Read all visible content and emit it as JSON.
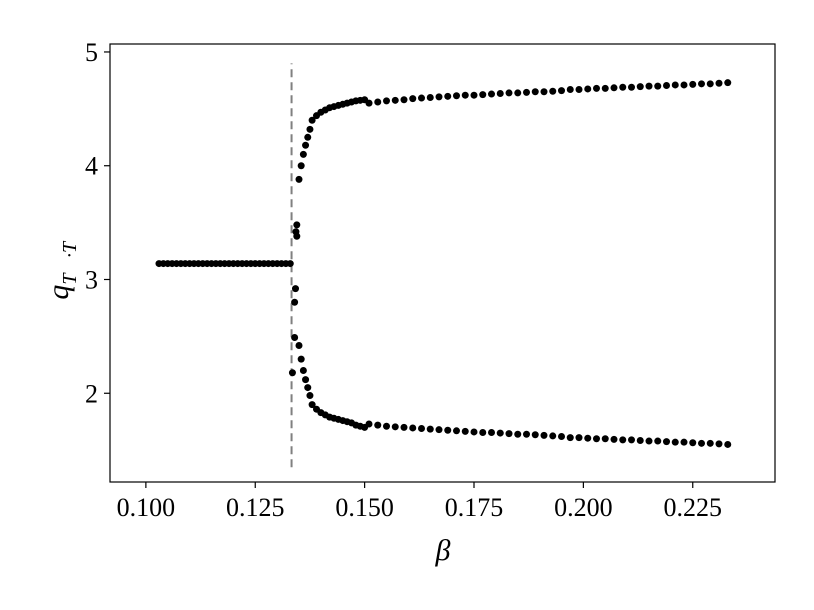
{
  "chart_data": {
    "type": "scatter",
    "xlabel": "β",
    "ylabel": "q",
    "ylabel_sub": "T⃗·T⃗",
    "xlim": [
      0.0918,
      0.2438
    ],
    "ylim": [
      1.22,
      5.07
    ],
    "xticks": [
      {
        "value": 0.1,
        "label": "0.100"
      },
      {
        "value": 0.125,
        "label": "0.125"
      },
      {
        "value": 0.15,
        "label": "0.150"
      },
      {
        "value": 0.175,
        "label": "0.175"
      },
      {
        "value": 0.2,
        "label": "0.200"
      },
      {
        "value": 0.225,
        "label": "0.225"
      }
    ],
    "yticks": [
      2,
      3,
      4,
      5
    ],
    "vline": {
      "x": 0.1333,
      "ymin": 1.35,
      "ymax": 4.9,
      "color": "#808080"
    },
    "series": [
      {
        "color": "#000000",
        "x": [
          0.103,
          0.104,
          0.105,
          0.106,
          0.107,
          0.108,
          0.109,
          0.11,
          0.111,
          0.112,
          0.113,
          0.114,
          0.115,
          0.116,
          0.117,
          0.118,
          0.119,
          0.12,
          0.121,
          0.122,
          0.123,
          0.124,
          0.125,
          0.126,
          0.127,
          0.128,
          0.129,
          0.13,
          0.131,
          0.132,
          0.133,
          0.1335,
          0.134,
          0.134,
          0.1342,
          0.1345,
          0.1345,
          0.1343
        ],
        "values": [
          3.14,
          3.14,
          3.14,
          3.14,
          3.14,
          3.14,
          3.14,
          3.14,
          3.14,
          3.14,
          3.14,
          3.14,
          3.14,
          3.14,
          3.14,
          3.14,
          3.14,
          3.14,
          3.14,
          3.14,
          3.14,
          3.14,
          3.14,
          3.14,
          3.14,
          3.14,
          3.14,
          3.14,
          3.14,
          3.14,
          3.14,
          2.18,
          2.49,
          2.8,
          2.92,
          3.38,
          3.48,
          3.42
        ]
      },
      {
        "color": "#000000",
        "x": [
          0.135,
          0.1355,
          0.136,
          0.1365,
          0.137,
          0.1375,
          0.138,
          0.139,
          0.14,
          0.141,
          0.142,
          0.143,
          0.144,
          0.145,
          0.146,
          0.147,
          0.148,
          0.149,
          0.15,
          0.151,
          0.153,
          0.155,
          0.157,
          0.159,
          0.161,
          0.163,
          0.165,
          0.167,
          0.169,
          0.171,
          0.173,
          0.175,
          0.177,
          0.179,
          0.181,
          0.183,
          0.185,
          0.187,
          0.189,
          0.191,
          0.193,
          0.195,
          0.197,
          0.199,
          0.201,
          0.203,
          0.205,
          0.207,
          0.209,
          0.211,
          0.213,
          0.215,
          0.217,
          0.219,
          0.221,
          0.223,
          0.225,
          0.227,
          0.229,
          0.231,
          0.233
        ],
        "values": [
          3.88,
          4.0,
          4.1,
          4.18,
          4.25,
          4.32,
          4.4,
          4.44,
          4.47,
          4.49,
          4.51,
          4.52,
          4.53,
          4.54,
          4.55,
          4.56,
          4.57,
          4.575,
          4.58,
          4.55,
          4.56,
          4.57,
          4.575,
          4.58,
          4.59,
          4.595,
          4.6,
          4.605,
          4.61,
          4.615,
          4.62,
          4.62,
          4.625,
          4.63,
          4.635,
          4.64,
          4.64,
          4.645,
          4.65,
          4.65,
          4.655,
          4.66,
          4.67,
          4.67,
          4.675,
          4.68,
          4.68,
          4.685,
          4.69,
          4.69,
          4.695,
          4.7,
          4.7,
          4.705,
          4.71,
          4.71,
          4.715,
          4.72,
          4.72,
          4.725,
          4.73
        ]
      },
      {
        "color": "#000000",
        "x": [
          0.135,
          0.1355,
          0.136,
          0.1365,
          0.137,
          0.1375,
          0.138,
          0.139,
          0.14,
          0.141,
          0.142,
          0.143,
          0.144,
          0.145,
          0.146,
          0.147,
          0.148,
          0.149,
          0.15,
          0.151,
          0.153,
          0.155,
          0.157,
          0.159,
          0.161,
          0.163,
          0.165,
          0.167,
          0.169,
          0.171,
          0.173,
          0.175,
          0.177,
          0.179,
          0.181,
          0.183,
          0.185,
          0.187,
          0.189,
          0.191,
          0.193,
          0.195,
          0.197,
          0.199,
          0.201,
          0.203,
          0.205,
          0.207,
          0.209,
          0.211,
          0.213,
          0.215,
          0.217,
          0.219,
          0.221,
          0.223,
          0.225,
          0.227,
          0.229,
          0.231,
          0.233
        ],
        "values": [
          2.42,
          2.3,
          2.2,
          2.12,
          2.05,
          1.98,
          1.9,
          1.86,
          1.83,
          1.81,
          1.79,
          1.78,
          1.77,
          1.76,
          1.75,
          1.74,
          1.72,
          1.71,
          1.7,
          1.73,
          1.72,
          1.71,
          1.705,
          1.7,
          1.695,
          1.69,
          1.685,
          1.68,
          1.675,
          1.67,
          1.665,
          1.66,
          1.655,
          1.655,
          1.65,
          1.645,
          1.64,
          1.64,
          1.635,
          1.63,
          1.625,
          1.62,
          1.61,
          1.61,
          1.605,
          1.6,
          1.6,
          1.595,
          1.59,
          1.59,
          1.585,
          1.58,
          1.58,
          1.575,
          1.57,
          1.57,
          1.565,
          1.56,
          1.56,
          1.555,
          1.55
        ]
      }
    ]
  }
}
